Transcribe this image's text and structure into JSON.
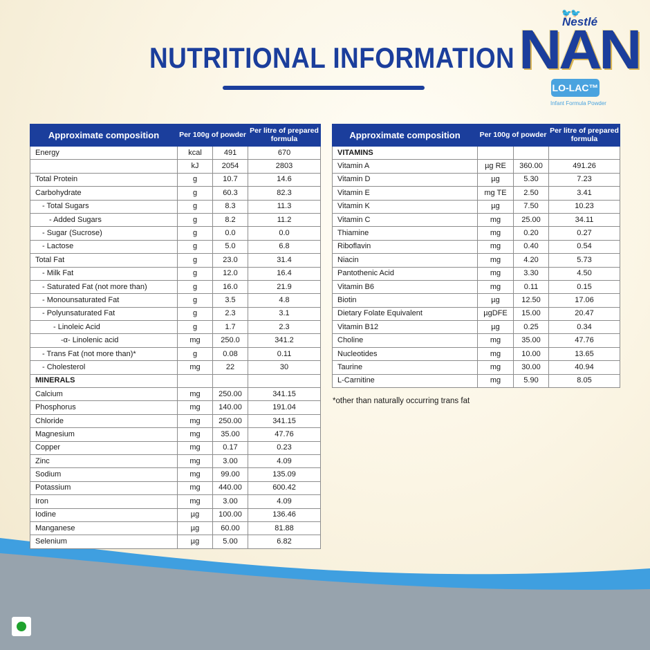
{
  "header": {
    "title": "NUTRITIONAL INFORMATION",
    "logo": {
      "brand": "Nestlé",
      "name": "NAN",
      "badge": "LO-LAC™",
      "subtitle": "Infant Formula Powder"
    }
  },
  "table_headers": {
    "composition": "Approximate composition",
    "per100g": "Per 100g of powder",
    "perlitre": "Per litre of prepared formula"
  },
  "left_rows": [
    {
      "name": "Energy",
      "unit": "kcal",
      "v1": "491",
      "v2": "670"
    },
    {
      "name": "",
      "unit": "kJ",
      "v1": "2054",
      "v2": "2803"
    },
    {
      "name": "Total Protein",
      "unit": "g",
      "v1": "10.7",
      "v2": "14.6"
    },
    {
      "name": "Carbohydrate",
      "unit": "g",
      "v1": "60.3",
      "v2": "82.3"
    },
    {
      "name": "- Total Sugars",
      "unit": "g",
      "v1": "8.3",
      "v2": "11.3",
      "indent": 1
    },
    {
      "name": "- Added Sugars",
      "unit": "g",
      "v1": "8.2",
      "v2": "11.2",
      "indent": 2
    },
    {
      "name": "- Sugar (Sucrose)",
      "unit": "g",
      "v1": "0.0",
      "v2": "0.0",
      "indent": 1
    },
    {
      "name": "- Lactose",
      "unit": "g",
      "v1": "5.0",
      "v2": "6.8",
      "indent": 1
    },
    {
      "name": "Total Fat",
      "unit": "g",
      "v1": "23.0",
      "v2": "31.4"
    },
    {
      "name": "- Milk Fat",
      "unit": "g",
      "v1": "12.0",
      "v2": "16.4",
      "indent": 1
    },
    {
      "name": "- Saturated Fat (not more than)",
      "unit": "g",
      "v1": "16.0",
      "v2": "21.9",
      "indent": 1
    },
    {
      "name": "- Monounsaturated Fat",
      "unit": "g",
      "v1": "3.5",
      "v2": "4.8",
      "indent": 1
    },
    {
      "name": "- Polyunsaturated Fat",
      "unit": "g",
      "v1": "2.3",
      "v2": "3.1",
      "indent": 1
    },
    {
      "name": "- Linoleic Acid",
      "unit": "g",
      "v1": "1.7",
      "v2": "2.3",
      "indent": 3
    },
    {
      "name": "-α- Linolenic acid",
      "unit": "mg",
      "v1": "250.0",
      "v2": "341.2",
      "indent": 4
    },
    {
      "name": "- Trans Fat (not more than)*",
      "unit": "g",
      "v1": "0.08",
      "v2": "0.11",
      "indent": 1
    },
    {
      "name": "- Cholesterol",
      "unit": "mg",
      "v1": "22",
      "v2": "30",
      "indent": 1
    },
    {
      "name": "MINERALS",
      "unit": "",
      "v1": "",
      "v2": "",
      "section": true
    },
    {
      "name": "Calcium",
      "unit": "mg",
      "v1": "250.00",
      "v2": "341.15"
    },
    {
      "name": "Phosphorus",
      "unit": "mg",
      "v1": "140.00",
      "v2": "191.04"
    },
    {
      "name": "Chloride",
      "unit": "mg",
      "v1": "250.00",
      "v2": "341.15"
    },
    {
      "name": "Magnesium",
      "unit": "mg",
      "v1": "35.00",
      "v2": "47.76"
    },
    {
      "name": "Copper",
      "unit": "mg",
      "v1": "0.17",
      "v2": "0.23"
    },
    {
      "name": "Zinc",
      "unit": "mg",
      "v1": "3.00",
      "v2": "4.09"
    },
    {
      "name": "Sodium",
      "unit": "mg",
      "v1": "99.00",
      "v2": "135.09"
    },
    {
      "name": "Potassium",
      "unit": "mg",
      "v1": "440.00",
      "v2": "600.42"
    },
    {
      "name": "Iron",
      "unit": "mg",
      "v1": "3.00",
      "v2": "4.09"
    },
    {
      "name": "Iodine",
      "unit": "µg",
      "v1": "100.00",
      "v2": "136.46"
    },
    {
      "name": "Manganese",
      "unit": "µg",
      "v1": "60.00",
      "v2": "81.88"
    },
    {
      "name": "Selenium",
      "unit": "µg",
      "v1": "5.00",
      "v2": "6.82"
    }
  ],
  "right_rows": [
    {
      "name": "VITAMINS",
      "unit": "",
      "v1": "",
      "v2": "",
      "section": true
    },
    {
      "name": "Vitamin A",
      "unit": "µg RE",
      "v1": "360.00",
      "v2": "491.26"
    },
    {
      "name": "Vitamin D",
      "unit": "µg",
      "v1": "5.30",
      "v2": "7.23"
    },
    {
      "name": "Vitamin E",
      "unit": "mg TE",
      "v1": "2.50",
      "v2": "3.41"
    },
    {
      "name": "Vitamin K",
      "unit": "µg",
      "v1": "7.50",
      "v2": "10.23"
    },
    {
      "name": "Vitamin C",
      "unit": "mg",
      "v1": "25.00",
      "v2": "34.11"
    },
    {
      "name": "Thiamine",
      "unit": "mg",
      "v1": "0.20",
      "v2": "0.27"
    },
    {
      "name": "Riboflavin",
      "unit": "mg",
      "v1": "0.40",
      "v2": "0.54"
    },
    {
      "name": "Niacin",
      "unit": "mg",
      "v1": "4.20",
      "v2": "5.73"
    },
    {
      "name": "Pantothenic Acid",
      "unit": "mg",
      "v1": "3.30",
      "v2": "4.50"
    },
    {
      "name": "Vitamin B6",
      "unit": "mg",
      "v1": "0.11",
      "v2": "0.15"
    },
    {
      "name": "Biotin",
      "unit": "µg",
      "v1": "12.50",
      "v2": "17.06"
    },
    {
      "name": "Dietary Folate Equivalent",
      "unit": "µgDFE",
      "v1": "15.00",
      "v2": "20.47"
    },
    {
      "name": "Vitamin B12",
      "unit": "µg",
      "v1": "0.25",
      "v2": "0.34"
    },
    {
      "name": "Choline",
      "unit": "mg",
      "v1": "35.00",
      "v2": "47.76"
    },
    {
      "name": "Nucleotides",
      "unit": "mg",
      "v1": "10.00",
      "v2": "13.65"
    },
    {
      "name": "Taurine",
      "unit": "mg",
      "v1": "30.00",
      "v2": "40.94"
    },
    {
      "name": "L-Carnitine",
      "unit": "mg",
      "v1": "5.90",
      "v2": "8.05"
    }
  ],
  "footnote": "*other than naturally occurring trans fat",
  "colors": {
    "primary_blue": "#1b3e9c",
    "light_blue": "#4aa3df",
    "wave_grey": "#97a3ad",
    "veg_green": "#1fa22e"
  },
  "icons": {
    "veg_mark": "veg-symbol-icon"
  }
}
